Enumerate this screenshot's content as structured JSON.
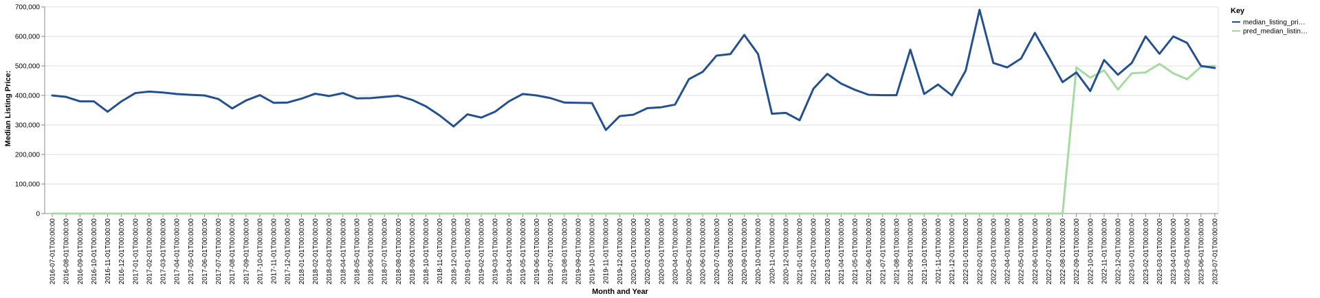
{
  "chart_data": {
    "type": "line",
    "xlabel": "Month and Year",
    "ylabel": "Median Listing Price:",
    "ylim": [
      0,
      700000
    ],
    "yticks": [
      0,
      100000,
      200000,
      300000,
      400000,
      500000,
      600000,
      700000
    ],
    "ytick_labels": [
      "0",
      "100,000",
      "200,000",
      "300,000",
      "400,000",
      "500,000",
      "600,000",
      "700,000"
    ],
    "grid": true,
    "legend": {
      "title": "Key",
      "placement": "top-right"
    },
    "colors": {
      "median_listing_price": "#23508f",
      "pred_median_listing_price": "#a6dba0"
    },
    "x": [
      "2016-07-01T00:00:00",
      "2016-08-01T00:00:00",
      "2016-09-01T00:00:00",
      "2016-10-01T00:00:00",
      "2016-11-01T00:00:00",
      "2016-12-01T00:00:00",
      "2017-01-01T00:00:00",
      "2017-02-01T00:00:00",
      "2017-03-01T00:00:00",
      "2017-04-01T00:00:00",
      "2017-05-01T00:00:00",
      "2017-06-01T00:00:00",
      "2017-07-01T00:00:00",
      "2017-08-01T00:00:00",
      "2017-09-01T00:00:00",
      "2017-10-01T00:00:00",
      "2017-11-01T00:00:00",
      "2017-12-01T00:00:00",
      "2018-01-01T00:00:00",
      "2018-02-01T00:00:00",
      "2018-03-01T00:00:00",
      "2018-04-01T00:00:00",
      "2018-05-01T00:00:00",
      "2018-06-01T00:00:00",
      "2018-07-01T00:00:00",
      "2018-08-01T00:00:00",
      "2018-09-01T00:00:00",
      "2018-10-01T00:00:00",
      "2018-11-01T00:00:00",
      "2018-12-01T00:00:00",
      "2019-01-01T00:00:00",
      "2019-02-01T00:00:00",
      "2019-03-01T00:00:00",
      "2019-04-01T00:00:00",
      "2019-05-01T00:00:00",
      "2019-06-01T00:00:00",
      "2019-07-01T00:00:00",
      "2019-08-01T00:00:00",
      "2019-09-01T00:00:00",
      "2019-10-01T00:00:00",
      "2019-11-01T00:00:00",
      "2019-12-01T00:00:00",
      "2020-01-01T00:00:00",
      "2020-02-01T00:00:00",
      "2020-03-01T00:00:00",
      "2020-04-01T00:00:00",
      "2020-05-01T00:00:00",
      "2020-06-01T00:00:00",
      "2020-07-01T00:00:00",
      "2020-08-01T00:00:00",
      "2020-09-01T00:00:00",
      "2020-10-01T00:00:00",
      "2020-11-01T00:00:00",
      "2020-12-01T00:00:00",
      "2021-01-01T00:00:00",
      "2021-02-01T00:00:00",
      "2021-03-01T00:00:00",
      "2021-04-01T00:00:00",
      "2021-05-01T00:00:00",
      "2021-06-01T00:00:00",
      "2021-07-01T00:00:00",
      "2021-08-01T00:00:00",
      "2021-09-01T00:00:00",
      "2021-10-01T00:00:00",
      "2021-11-01T00:00:00",
      "2021-12-01T00:00:00",
      "2022-01-01T00:00:00",
      "2022-02-01T00:00:00",
      "2022-03-01T00:00:00",
      "2022-04-01T00:00:00",
      "2022-05-01T00:00:00",
      "2022-06-01T00:00:00",
      "2022-07-01T00:00:00",
      "2022-08-01T00:00:00",
      "2022-09-01T00:00:00",
      "2022-10-01T00:00:00",
      "2022-11-01T00:00:00",
      "2022-12-01T00:00:00",
      "2023-01-01T00:00:00",
      "2023-02-01T00:00:00",
      "2023-03-01T00:00:00",
      "2023-04-01T00:00:00",
      "2023-05-01T00:00:00",
      "2023-06-01T00:00:00",
      "2023-07-01T00:00:00"
    ],
    "series": [
      {
        "name": "median_listing_pri…",
        "values": [
          400000,
          395000,
          380000,
          380000,
          345000,
          380000,
          408000,
          413000,
          410000,
          405000,
          402000,
          400000,
          388000,
          356000,
          383000,
          401000,
          375000,
          376000,
          389000,
          406000,
          398000,
          408000,
          390000,
          391000,
          395000,
          399000,
          385000,
          363000,
          332000,
          295000,
          336000,
          325000,
          345000,
          380000,
          405000,
          400000,
          391000,
          376000,
          375000,
          374000,
          283000,
          330000,
          335000,
          357000,
          360000,
          369000,
          455000,
          480000,
          535000,
          540000,
          605000,
          540000,
          338000,
          341000,
          316000,
          423000,
          473000,
          440000,
          419000,
          402000,
          401000,
          401000,
          555000,
          405000,
          437000,
          400000,
          484000,
          690000,
          510000,
          495000,
          525000,
          612000,
          530000,
          445000,
          478000,
          415000,
          520000,
          470000,
          510000,
          600000,
          541000,
          600000,
          578000,
          500000,
          493000
        ]
      },
      {
        "name": "pred_median_listin…",
        "values": [
          0,
          0,
          0,
          0,
          0,
          0,
          0,
          0,
          0,
          0,
          0,
          0,
          0,
          0,
          0,
          0,
          0,
          0,
          0,
          0,
          0,
          0,
          0,
          0,
          0,
          0,
          0,
          0,
          0,
          0,
          0,
          0,
          0,
          0,
          0,
          0,
          0,
          0,
          0,
          0,
          0,
          0,
          0,
          0,
          0,
          0,
          0,
          0,
          0,
          0,
          0,
          0,
          0,
          0,
          0,
          0,
          0,
          0,
          0,
          0,
          0,
          0,
          0,
          0,
          0,
          0,
          0,
          0,
          0,
          0,
          0,
          0,
          0,
          0,
          495000,
          460000,
          485000,
          420000,
          475000,
          478000,
          507000,
          475000,
          455000,
          497000,
          500000
        ]
      }
    ]
  }
}
